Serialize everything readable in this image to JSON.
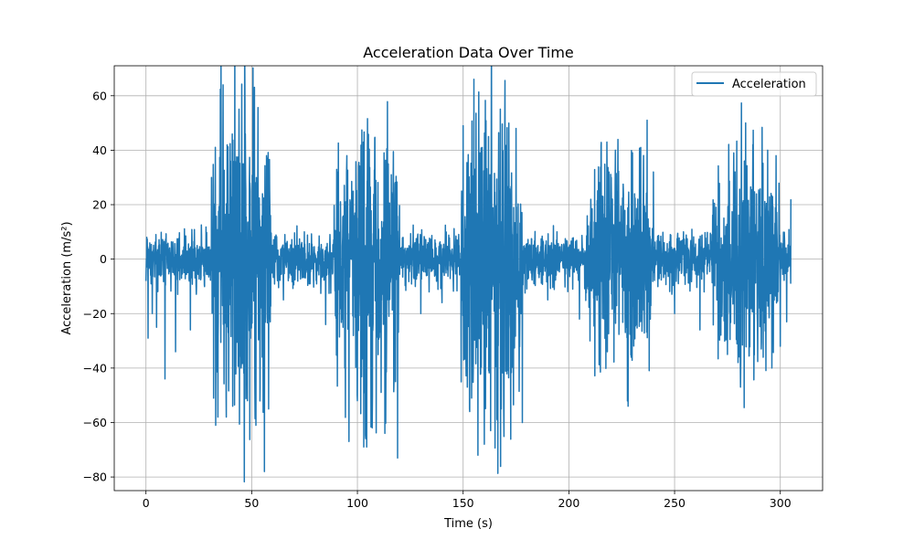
{
  "chart_data": {
    "type": "line",
    "title": "Acceleration Data Over Time",
    "xlabel": "Time (s)",
    "ylabel": "Acceleration (m/s²)",
    "xlim": [
      -15,
      320
    ],
    "ylim": [
      -85,
      71
    ],
    "xticks": [
      0,
      50,
      100,
      150,
      200,
      250,
      300
    ],
    "yticks": [
      -80,
      -60,
      -40,
      -20,
      0,
      20,
      40,
      60
    ],
    "grid": true,
    "legend": "top-right",
    "series": [
      {
        "name": "Acceleration",
        "color": "#1f77b4",
        "sample_interval": 0.1,
        "x_range": [
          0,
          305
        ],
        "notable_points": [
          {
            "x": 0,
            "y": -8
          },
          {
            "x": 1,
            "y": -29
          },
          {
            "x": 3,
            "y": -20
          },
          {
            "x": 5,
            "y": -25
          },
          {
            "x": 9,
            "y": -44
          },
          {
            "x": 14,
            "y": -34
          },
          {
            "x": 21,
            "y": -26
          },
          {
            "x": 31,
            "y": 30
          },
          {
            "x": 32,
            "y": -51
          },
          {
            "x": 33,
            "y": -61
          },
          {
            "x": 34,
            "y": -58
          },
          {
            "x": 35,
            "y": 27
          },
          {
            "x": 36.5,
            "y": 64
          },
          {
            "x": 38,
            "y": -58
          },
          {
            "x": 40,
            "y": 36
          },
          {
            "x": 41,
            "y": -54
          },
          {
            "x": 45,
            "y": -40
          },
          {
            "x": 47,
            "y": 46
          },
          {
            "x": 48,
            "y": -52
          },
          {
            "x": 52,
            "y": -61
          },
          {
            "x": 54,
            "y": -47
          },
          {
            "x": 56,
            "y": -78
          },
          {
            "x": 57,
            "y": 38
          },
          {
            "x": 58,
            "y": -55
          },
          {
            "x": 65,
            "y": -15
          },
          {
            "x": 85,
            "y": -24
          },
          {
            "x": 94,
            "y": -40
          },
          {
            "x": 95,
            "y": 38
          },
          {
            "x": 96,
            "y": -67
          },
          {
            "x": 100,
            "y": -52
          },
          {
            "x": 103,
            "y": -69
          },
          {
            "x": 105,
            "y": 38
          },
          {
            "x": 107,
            "y": -62
          },
          {
            "x": 113,
            "y": -64
          },
          {
            "x": 116,
            "y": 31
          },
          {
            "x": 118,
            "y": -45
          },
          {
            "x": 119,
            "y": -73
          },
          {
            "x": 130,
            "y": -20
          },
          {
            "x": 140,
            "y": -16
          },
          {
            "x": 150,
            "y": 49
          },
          {
            "x": 152,
            "y": -47
          },
          {
            "x": 153,
            "y": -55
          },
          {
            "x": 154,
            "y": -51
          },
          {
            "x": 157,
            "y": -72
          },
          {
            "x": 158,
            "y": 39
          },
          {
            "x": 160,
            "y": -68
          },
          {
            "x": 162,
            "y": 45
          },
          {
            "x": 163,
            "y": -63
          },
          {
            "x": 168,
            "y": -55
          },
          {
            "x": 175,
            "y": 48
          },
          {
            "x": 178,
            "y": -60
          },
          {
            "x": 190,
            "y": -15
          },
          {
            "x": 205,
            "y": -22
          },
          {
            "x": 210,
            "y": -30
          },
          {
            "x": 218,
            "y": 43
          },
          {
            "x": 222,
            "y": 40
          },
          {
            "x": 228,
            "y": -54
          },
          {
            "x": 230,
            "y": 38
          },
          {
            "x": 237,
            "y": 51
          },
          {
            "x": 238,
            "y": -41
          },
          {
            "x": 240,
            "y": 32
          },
          {
            "x": 250,
            "y": -20
          },
          {
            "x": 262,
            "y": -26
          },
          {
            "x": 270,
            "y": -15
          },
          {
            "x": 275,
            "y": -35
          },
          {
            "x": 278,
            "y": 39
          },
          {
            "x": 280,
            "y": -38
          },
          {
            "x": 283,
            "y": 36
          },
          {
            "x": 287,
            "y": 42
          },
          {
            "x": 291,
            "y": -33
          },
          {
            "x": 294,
            "y": 40
          },
          {
            "x": 296,
            "y": -40
          },
          {
            "x": 298,
            "y": 38
          },
          {
            "x": 300,
            "y": -32
          },
          {
            "x": 303,
            "y": -23
          },
          {
            "x": 305,
            "y": 22
          }
        ],
        "bursts": [
          {
            "x_start": 31,
            "x_end": 59,
            "amplitude": 34
          },
          {
            "x_start": 89,
            "x_end": 120,
            "amplitude": 27
          },
          {
            "x_start": 149,
            "x_end": 178,
            "amplitude": 30
          },
          {
            "x_start": 208,
            "x_end": 239,
            "amplitude": 22
          },
          {
            "x_start": 268,
            "x_end": 300,
            "amplitude": 21
          }
        ],
        "baseline_amplitude": 4.5
      }
    ]
  }
}
